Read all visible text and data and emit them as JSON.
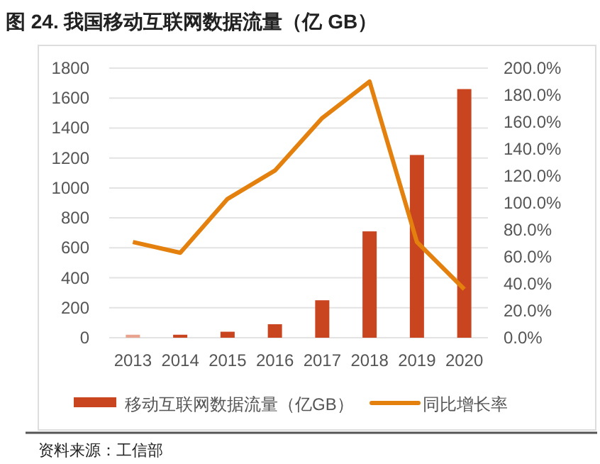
{
  "chart_data": {
    "type": "bar",
    "title": "图 24. 我国移动互联网数据流量（亿 GB）",
    "categories": [
      "2013",
      "2014",
      "2015",
      "2016",
      "2017",
      "2018",
      "2019",
      "2020"
    ],
    "series": [
      {
        "name": "移动互联网数据流量（亿GB）",
        "color": "#c8451f",
        "colors": [
          "#e9a48f",
          "#c8451f",
          "#c8451f",
          "#c8451f",
          "#c8451f",
          "#c8451f",
          "#c8451f",
          "#c8451f"
        ],
        "values": [
          20,
          20,
          40,
          90,
          250,
          710,
          1220,
          1660
        ]
      },
      {
        "name": "同比增长率",
        "type": "line",
        "axis": "y2",
        "color": "#e3800e",
        "values": [
          71,
          63,
          103,
          124,
          163,
          190,
          71,
          36
        ]
      }
    ],
    "ylim": [
      0,
      1800
    ],
    "yticks": [
      0,
      200,
      400,
      600,
      800,
      1000,
      1200,
      1400,
      1600,
      1800
    ],
    "y2lim": [
      0,
      200
    ],
    "y2ticks": [
      {
        "value": 0,
        "label": "0.0%"
      },
      {
        "value": 20,
        "label": "20.0%"
      },
      {
        "value": 40,
        "label": "40.0%"
      },
      {
        "value": 60,
        "label": "60.0%"
      },
      {
        "value": 80,
        "label": "80.0%"
      },
      {
        "value": 100,
        "label": "100.0%"
      },
      {
        "value": 120,
        "label": "120.0%"
      },
      {
        "value": 140,
        "label": "140.0%"
      },
      {
        "value": 160,
        "label": "160.0%"
      },
      {
        "value": 180,
        "label": "180.0%"
      },
      {
        "value": 200,
        "label": "200.0%"
      }
    ],
    "grid": "y",
    "legend": "bottom",
    "annotations": [
      "资料来源：工信部"
    ]
  }
}
